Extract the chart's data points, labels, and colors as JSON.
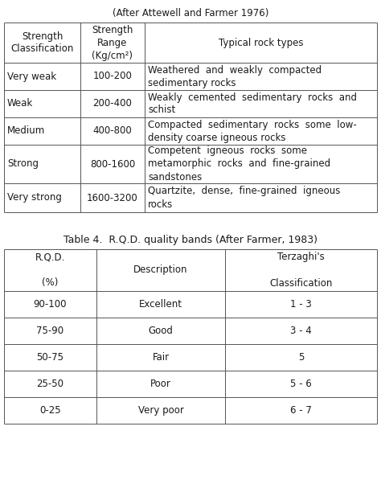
{
  "title1": "(After Attewell and Farmer 1976)",
  "title2": "Table 4.  R.Q.D. quality bands (After Farmer, 1983)",
  "t1_col_headers": [
    "Strength\nClassification",
    "Strength\nRange\n(Kg/cm²)",
    "Typical rock types"
  ],
  "table1_rows": [
    [
      "Very weak",
      "100-200",
      "Weathered  and  weakly  compacted\nsedimentary rocks"
    ],
    [
      "Weak",
      "200-400",
      "Weakly  cemented  sedimentary  rocks  and\nschist"
    ],
    [
      "Medium",
      "400-800",
      "Compacted  sedimentary  rocks  some  low-\ndensity coarse igneous rocks"
    ],
    [
      "Strong",
      "800-1600",
      "Competent  igneous  rocks  some\nmetamorphic  rocks  and  fine-grained\nsandstones"
    ],
    [
      "Very strong",
      "1600-3200",
      "Quartzite,  dense,  fine-grained  igneous\nrocks"
    ]
  ],
  "t2_col_headers": [
    "R.Q.D.\n\n(%)",
    "Description",
    "Terzaghi's\n\nClassification"
  ],
  "table2_rows": [
    [
      "90-100",
      "Excellent",
      "1 - 3"
    ],
    [
      "75-90",
      "Good",
      "3 - 4"
    ],
    [
      "50-75",
      "Fair",
      "5"
    ],
    [
      "25-50",
      "Poor",
      "5 - 6"
    ],
    [
      "0-25",
      "Very poor",
      "6 - 7"
    ]
  ],
  "bg_color": "#ffffff",
  "text_color": "#1a1a1a",
  "line_color": "#555555",
  "font_size": 8.5,
  "font_family": "DejaVu Sans"
}
